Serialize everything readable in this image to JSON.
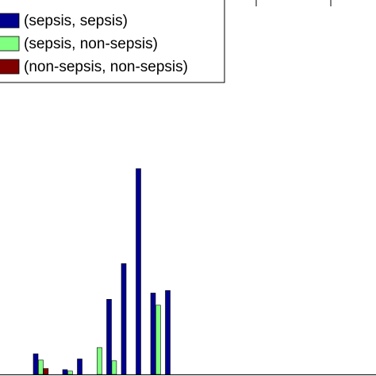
{
  "chart_data": {
    "type": "bar",
    "title": "",
    "xlabel": "",
    "ylabel": "",
    "ylim": [
      0,
      100
    ],
    "grid": false,
    "legend": {
      "placement": "top-left"
    },
    "series": [
      {
        "name": "(sepsis, sepsis)",
        "color": "#00008f",
        "values": [
          5.6,
          0,
          1.3,
          4.2,
          0,
          20.4,
          30.1,
          55.9,
          22.1,
          22.8,
          0,
          0,
          0,
          0,
          0,
          0,
          0,
          0,
          0,
          0,
          0,
          0
        ]
      },
      {
        "name": "(sepsis, non-sepsis)",
        "color": "#80ff80",
        "values": [
          3.9,
          0,
          0.9,
          0,
          7.3,
          3.7,
          0,
          0,
          18.8,
          0,
          0,
          0,
          0,
          0,
          0,
          0,
          0,
          0,
          0,
          0,
          0,
          0
        ]
      },
      {
        "name": "(non-sepsis, non-sepsis)",
        "color": "#800000",
        "values": [
          1.6,
          0,
          0,
          0,
          0,
          0,
          0,
          0,
          0,
          0,
          0,
          0,
          0,
          0,
          0,
          0,
          0,
          0,
          0,
          0,
          0,
          0
        ]
      }
    ]
  }
}
